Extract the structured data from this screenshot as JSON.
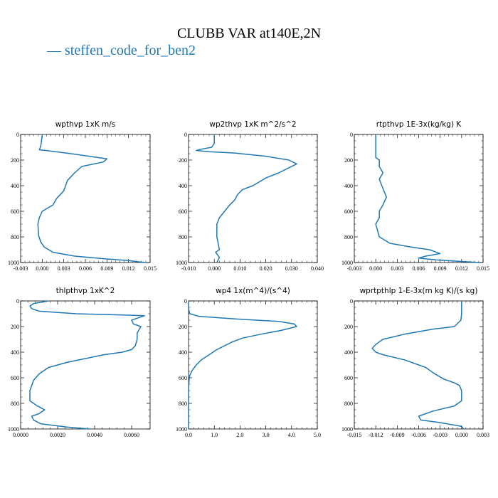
{
  "header": {
    "title": "CLUBB VAR at140E,2N",
    "legend_entry": "steffen_code_for_ben2",
    "legend_color": "#1f77b4"
  },
  "chart_data": [
    {
      "type": "line",
      "title": "wpthvp   1xK  m/s",
      "xlim": [
        -0.003,
        0.015
      ],
      "xticks": [
        -0.003,
        0.0,
        0.003,
        0.006,
        0.009,
        0.012,
        0.015
      ],
      "xtick_labels": [
        "-0.003",
        "0.000",
        "0.003",
        "0.006",
        "0.009",
        "0.012",
        "0.015"
      ],
      "ylim": [
        1000,
        0
      ],
      "yticks": [
        0,
        200,
        400,
        600,
        800,
        1000
      ],
      "series": [
        {
          "x": [
            0.0,
            -0.0001,
            -0.0002,
            -0.0004,
            0.0005,
            0.004,
            0.009,
            0.0085,
            0.0055,
            0.0045,
            0.0035,
            0.003,
            0.0025,
            0.002,
            0.0015,
            0.0,
            -0.0004,
            -0.0006,
            -0.0005,
            -0.0002,
            0.0003,
            0.0015,
            0.0045,
            0.0085,
            0.012,
            0.0135,
            0.0145
          ],
          "y": [
            0,
            50,
            90,
            120,
            125,
            150,
            190,
            215,
            250,
            300,
            360,
            440,
            470,
            500,
            550,
            600,
            650,
            700,
            790,
            840,
            880,
            920,
            950,
            970,
            985,
            995,
            1000
          ]
        }
      ]
    },
    {
      "type": "line",
      "title": "wp2thvp   1xK  m^2/s^2",
      "xlim": [
        -0.01,
        0.04
      ],
      "xticks": [
        -0.01,
        0.0,
        0.01,
        0.02,
        0.03,
        0.04
      ],
      "xtick_labels": [
        "-0.010",
        "0.000",
        "0.010",
        "0.020",
        "0.030",
        "0.040"
      ],
      "ylim": [
        1000,
        0
      ],
      "yticks": [
        0,
        200,
        400,
        600,
        800,
        1000
      ],
      "series": [
        {
          "x": [
            0.0,
            0.0,
            -0.001,
            -0.005,
            -0.007,
            -0.002,
            0.008,
            0.02,
            0.029,
            0.032,
            0.029,
            0.025,
            0.02,
            0.015,
            0.011,
            0.009,
            0.008,
            0.006,
            0.004,
            0.002,
            0.001,
            0.001,
            0.0015,
            0.002,
            0.0005,
            0.002,
            0.001
          ],
          "y": [
            0,
            70,
            100,
            115,
            125,
            135,
            145,
            170,
            200,
            230,
            260,
            300,
            340,
            400,
            430,
            470,
            510,
            550,
            600,
            650,
            700,
            800,
            850,
            900,
            920,
            960,
            1000
          ]
        }
      ]
    },
    {
      "type": "line",
      "title": "rtpthvp   1E-3x(kg/kg)  K",
      "xlim": [
        -0.003,
        0.015
      ],
      "xticks": [
        -0.003,
        0.0,
        0.003,
        0.006,
        0.009,
        0.012,
        0.015
      ],
      "xtick_labels": [
        "-0.003",
        "0.000",
        "0.003",
        "0.006",
        "0.009",
        "0.012",
        "0.015"
      ],
      "ylim": [
        1000,
        0
      ],
      "yticks": [
        0,
        200,
        400,
        600,
        800,
        1000
      ],
      "series": [
        {
          "x": [
            0.0,
            0.0,
            0.0,
            0.0,
            0.0005,
            0.0005,
            0.001,
            0.0005,
            0.001,
            0.0015,
            0.001,
            0.0005,
            0.0005,
            0.0,
            0.0005,
            0.002,
            0.005,
            0.0075,
            0.009,
            0.008,
            0.007,
            0.006,
            0.0085,
            0.012,
            0.0145
          ],
          "y": [
            0,
            100,
            150,
            180,
            200,
            250,
            300,
            350,
            420,
            490,
            550,
            600,
            650,
            700,
            800,
            850,
            880,
            900,
            930,
            940,
            950,
            965,
            980,
            992,
            1000
          ]
        }
      ]
    },
    {
      "type": "line",
      "title": "thlpthvp   1xK^2",
      "xlim": [
        0.0,
        0.007
      ],
      "xticks": [
        0.0,
        0.002,
        0.004,
        0.006
      ],
      "xtick_labels": [
        "0.0000",
        "0.0020",
        "0.0040",
        "0.0060"
      ],
      "ylim": [
        1000,
        0
      ],
      "yticks": [
        0,
        200,
        400,
        600,
        800,
        1000
      ],
      "series": [
        {
          "x": [
            0.0015,
            0.0007,
            0.0005,
            0.0006,
            0.001,
            0.003,
            0.0055,
            0.0067,
            0.006,
            0.0061,
            0.0065,
            0.0063,
            0.0063,
            0.0062,
            0.006,
            0.0055,
            0.0045,
            0.0035,
            0.0025,
            0.0015,
            0.001,
            0.0007,
            0.0005,
            0.0005,
            0.0009,
            0.0013,
            0.001,
            0.0006,
            0.0007,
            0.0011,
            0.0025,
            0.0037
          ],
          "y": [
            0,
            20,
            40,
            60,
            80,
            100,
            110,
            115,
            150,
            180,
            200,
            250,
            300,
            350,
            380,
            400,
            420,
            450,
            480,
            520,
            570,
            620,
            700,
            780,
            820,
            850,
            880,
            900,
            930,
            960,
            985,
            1000
          ]
        }
      ]
    },
    {
      "type": "line",
      "title": "wp4   1x(m^4)/(s^4)",
      "xlim": [
        0.0,
        5.0
      ],
      "xticks": [
        0.0,
        1.0,
        2.0,
        3.0,
        4.0,
        5.0
      ],
      "xtick_labels": [
        "0.0",
        "1.0",
        "2.0",
        "3.0",
        "4.0",
        "5.0"
      ],
      "ylim": [
        1000,
        0
      ],
      "yticks": [
        0,
        200,
        400,
        600,
        800,
        1000
      ],
      "series": [
        {
          "x": [
            0.0,
            0.0,
            0.05,
            0.4,
            1.8,
            3.5,
            4.1,
            4.2,
            3.6,
            2.8,
            2.1,
            1.7,
            1.4,
            1.1,
            0.8,
            0.5,
            0.3,
            0.15,
            0.05,
            0.02,
            0.0,
            0.0
          ],
          "y": [
            0,
            60,
            100,
            120,
            140,
            160,
            180,
            200,
            230,
            260,
            290,
            320,
            350,
            380,
            420,
            460,
            500,
            540,
            580,
            620,
            700,
            1000
          ]
        }
      ]
    },
    {
      "type": "line",
      "title": "wprtpthlp   1-E-3x(m kg K)/(s kg)",
      "xlim": [
        -0.015,
        0.003
      ],
      "xticks": [
        -0.015,
        -0.012,
        -0.009,
        -0.006,
        -0.003,
        0.0,
        0.003
      ],
      "xtick_labels": [
        "-0.015",
        "-0.012",
        "-0.009",
        "-0.006",
        "-0.003",
        "0.000",
        "0.003"
      ],
      "ylim": [
        1000,
        0
      ],
      "yticks": [
        0,
        200,
        400,
        600,
        800,
        1000
      ],
      "series": [
        {
          "x": [
            0.0,
            0.0,
            -0.0001,
            -0.001,
            -0.004,
            -0.008,
            -0.011,
            -0.012,
            -0.0125,
            -0.012,
            -0.011,
            -0.008,
            -0.006,
            -0.005,
            -0.004,
            -0.0025,
            -0.001,
            -0.0003,
            0.0,
            0.0,
            -0.001,
            -0.004,
            -0.006,
            -0.0057,
            -0.003,
            0.0,
            0.0003
          ],
          "y": [
            0,
            100,
            150,
            200,
            220,
            260,
            300,
            340,
            370,
            400,
            420,
            460,
            500,
            520,
            560,
            610,
            640,
            660,
            700,
            780,
            820,
            860,
            900,
            930,
            950,
            980,
            1000
          ]
        }
      ]
    }
  ]
}
